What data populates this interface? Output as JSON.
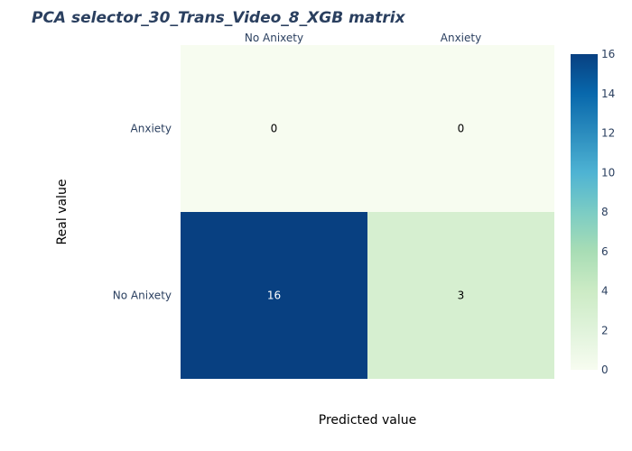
{
  "chart_data": {
    "type": "heatmap",
    "title": "PCA selector_30_Trans_Video_8_XGB matrix",
    "xlabel": "Predicted value",
    "ylabel": "Real value",
    "x_categories": [
      "No Anixety",
      "Anxiety"
    ],
    "y_categories_top_to_bottom": [
      "Anxiety",
      "No Anixety"
    ],
    "values_top_to_bottom": [
      [
        0,
        0
      ],
      [
        16,
        3
      ]
    ],
    "colorscale": "GnBu",
    "color_range": [
      0,
      16
    ],
    "colorbar_ticks": [
      0,
      2,
      4,
      6,
      8,
      10,
      12,
      14,
      16
    ],
    "x_axis_position": "top",
    "grid": false,
    "colorbar_placement": "right"
  }
}
